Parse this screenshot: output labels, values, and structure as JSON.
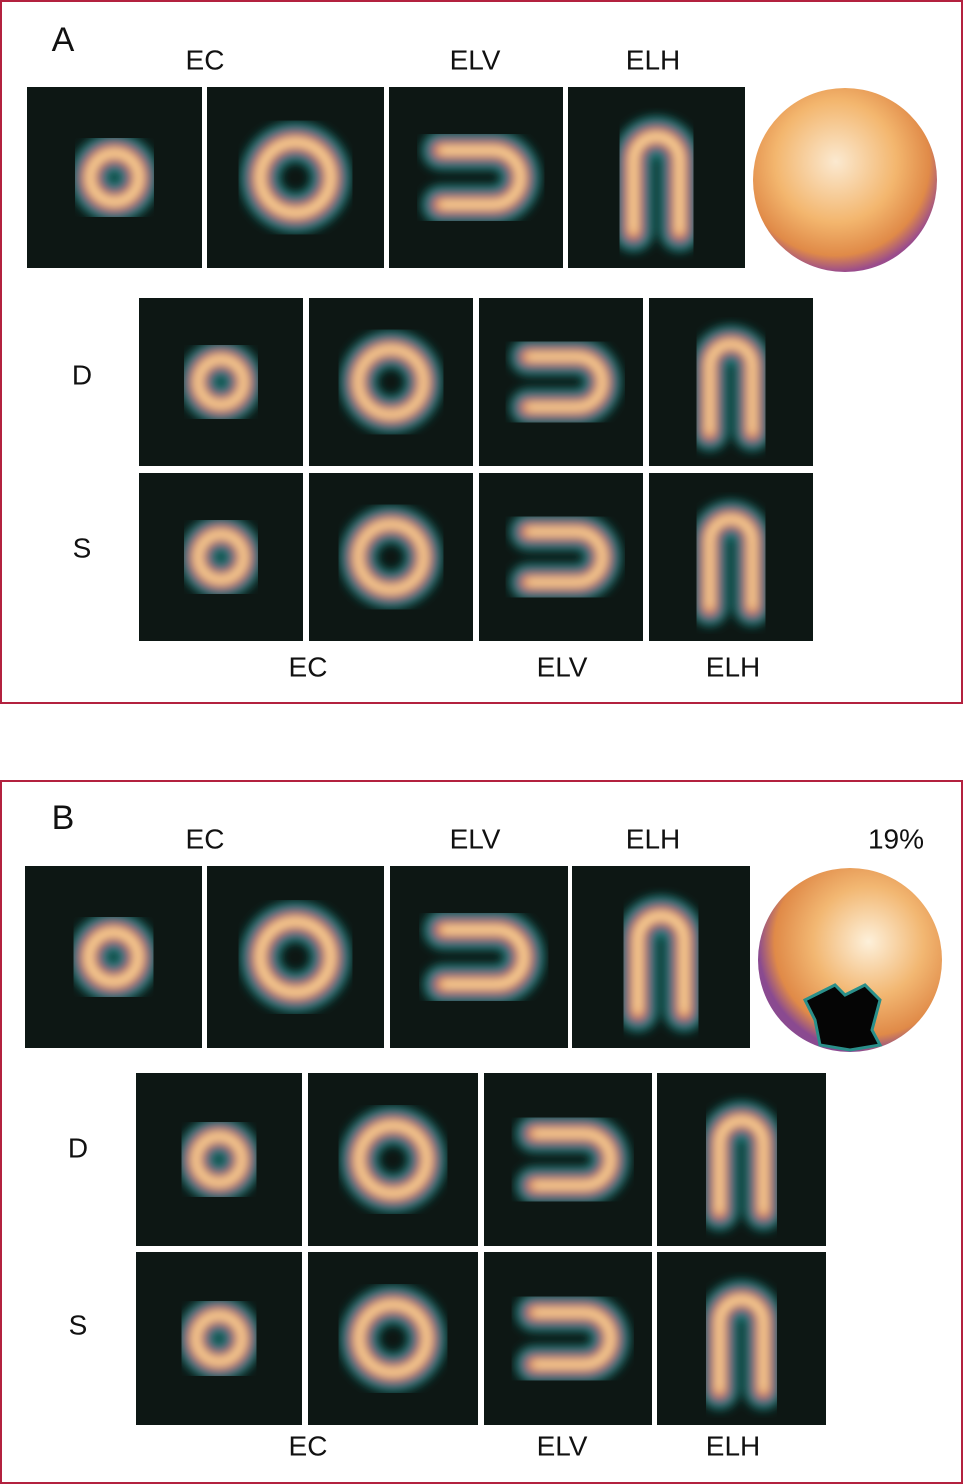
{
  "panel_a": {
    "label": "A",
    "top_labels": [
      "EC",
      "ELV",
      "ELH"
    ],
    "row_labels": [
      "D",
      "S"
    ],
    "bottom_labels": [
      "EC",
      "ELV",
      "ELH"
    ]
  },
  "panel_b": {
    "label": "B",
    "top_labels": [
      "EC",
      "ELV",
      "ELH"
    ],
    "polar_map_label": "19%",
    "row_labels": [
      "D",
      "S"
    ],
    "bottom_labels": [
      "EC",
      "ELV",
      "ELH"
    ]
  }
}
